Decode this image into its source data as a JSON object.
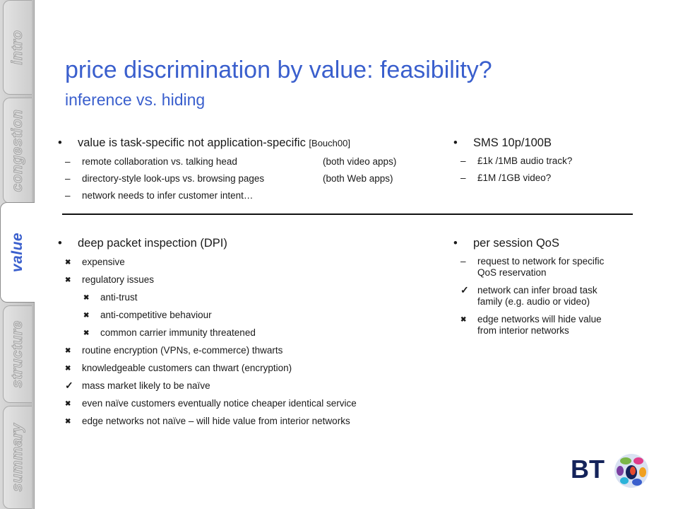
{
  "nav": {
    "tabs": [
      {
        "label": "intro",
        "active": false
      },
      {
        "label": "congestion",
        "active": false
      },
      {
        "label": "value",
        "active": true
      },
      {
        "label": "structure",
        "active": false
      },
      {
        "label": "summary",
        "active": false
      }
    ]
  },
  "slide": {
    "title": "price discrimination by value: feasibility?",
    "subtitle": "inference vs. hiding"
  },
  "top_left": {
    "heading": "value is task-specific not application-specific",
    "ref": "[Bouch00]",
    "items": [
      {
        "text": "remote collaboration vs. talking head",
        "note": "(both video apps)"
      },
      {
        "text": "directory-style look-ups vs. browsing pages",
        "note": "(both Web apps)"
      },
      {
        "text": "network needs to infer customer intent…",
        "note": ""
      }
    ]
  },
  "top_right": {
    "heading": "SMS 10p/100B",
    "items": [
      "£1k /1MB audio track?",
      "£1M /1GB video?"
    ]
  },
  "bottom_left": {
    "heading": "deep packet inspection (DPI)",
    "items": [
      {
        "text": "expensive",
        "mark": "cross",
        "level": 1
      },
      {
        "text": "regulatory issues",
        "mark": "cross",
        "level": 1
      },
      {
        "text": "anti-trust",
        "mark": "cross",
        "level": 2
      },
      {
        "text": "anti-competitive behaviour",
        "mark": "cross",
        "level": 2
      },
      {
        "text": "common carrier immunity threatened",
        "mark": "cross",
        "level": 2
      },
      {
        "text": "routine encryption (VPNs, e-commerce) thwarts",
        "mark": "cross",
        "level": 1
      },
      {
        "text": "knowledgeable customers can thwart (encryption)",
        "mark": "cross",
        "level": 1
      },
      {
        "text": "mass market likely to be naïve",
        "mark": "check",
        "level": 1
      },
      {
        "text": "even naïve customers eventually notice cheaper identical service",
        "mark": "cross",
        "level": 1
      },
      {
        "text": "edge networks not naïve – will hide value from interior networks",
        "mark": "cross",
        "level": 1
      }
    ]
  },
  "bottom_right": {
    "heading": "per session QoS",
    "items": [
      {
        "text": "request to network for specific QoS reservation",
        "mark": "dash"
      },
      {
        "text": "network can infer broad task family (e.g. audio or video)",
        "mark": "check"
      },
      {
        "text": "edge networks will hide value from interior networks",
        "mark": "cross"
      }
    ]
  },
  "logo": {
    "text": "BT"
  },
  "marks": {
    "bullet": "•",
    "dash": "–",
    "cross": "✖",
    "check": "✓"
  },
  "colors": {
    "accent": "#3a5fcd",
    "text": "#1a1a1a"
  }
}
